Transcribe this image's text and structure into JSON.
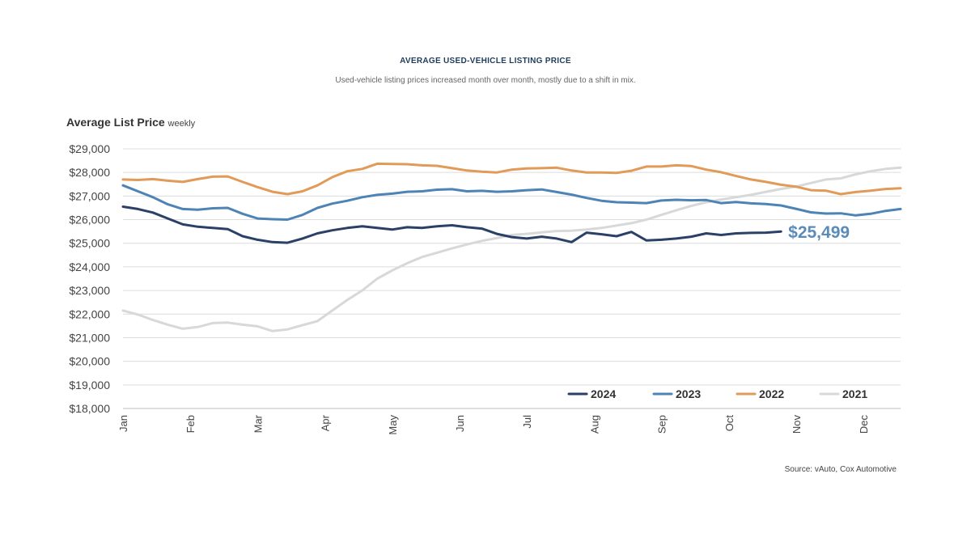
{
  "chart_data": {
    "type": "line",
    "title": "AVERAGE USED-VEHICLE LISTING PRICE",
    "subtitle": "Used-vehicle listing prices increased month over month, mostly due to a shift in mix.",
    "ylabel": "Average List Price",
    "ylabel_suffix": "weekly",
    "source": "Source: vAuto, Cox Automotive",
    "ylim": [
      18000,
      29000
    ],
    "yticks": [
      18000,
      19000,
      20000,
      21000,
      22000,
      23000,
      24000,
      25000,
      26000,
      27000,
      28000,
      29000
    ],
    "ytick_labels": [
      "$18,000",
      "$19,000",
      "$20,000",
      "$21,000",
      "$22,000",
      "$23,000",
      "$24,000",
      "$25,000",
      "$26,000",
      "$27,000",
      "$28,000",
      "$29,000"
    ],
    "months": [
      "Jan",
      "Feb",
      "Mar",
      "Apr",
      "May",
      "Jun",
      "Jul",
      "Aug",
      "Sep",
      "Oct",
      "Nov",
      "Dec"
    ],
    "x_unit": "week of year (0-52)",
    "xlim": [
      0,
      52
    ],
    "annotation": {
      "text": "$25,499",
      "series": "2024",
      "color": "#5b8bb8"
    },
    "grid": true,
    "legend_position": "bottom-right",
    "series": [
      {
        "name": "2024",
        "color": "#2b4067",
        "x": [
          0,
          1,
          2,
          3,
          4,
          5,
          6,
          7,
          8,
          9,
          10,
          11,
          12,
          13,
          14,
          15,
          16,
          17,
          18,
          19,
          20,
          21,
          22,
          23,
          24,
          25,
          26,
          27,
          28,
          29,
          30,
          31,
          32,
          33,
          34,
          35,
          36,
          37,
          38,
          39,
          40,
          41,
          42,
          43,
          44
        ],
        "values": [
          26550,
          26450,
          26300,
          26050,
          25800,
          25700,
          25650,
          25600,
          25300,
          25150,
          25050,
          25020,
          25200,
          25420,
          25550,
          25650,
          25720,
          25650,
          25580,
          25680,
          25650,
          25720,
          25760,
          25680,
          25620,
          25400,
          25260,
          25200,
          25280,
          25200,
          25050,
          25450,
          25380,
          25300,
          25480,
          25120,
          25150,
          25200,
          25280,
          25420,
          25350,
          25420,
          25440,
          25450,
          25499
        ]
      },
      {
        "name": "2023",
        "color": "#4e83b6",
        "x": [
          0,
          1,
          2,
          3,
          4,
          5,
          6,
          7,
          8,
          9,
          10,
          11,
          12,
          13,
          14,
          15,
          16,
          17,
          18,
          19,
          20,
          21,
          22,
          23,
          24,
          25,
          26,
          27,
          28,
          29,
          30,
          31,
          32,
          33,
          34,
          35,
          36,
          37,
          38,
          39,
          40,
          41,
          42,
          43,
          44,
          45,
          46,
          47,
          48,
          49,
          50,
          51,
          52
        ],
        "values": [
          27450,
          27200,
          26950,
          26650,
          26450,
          26420,
          26480,
          26500,
          26250,
          26050,
          26020,
          26000,
          26200,
          26500,
          26680,
          26800,
          26950,
          27050,
          27100,
          27180,
          27200,
          27270,
          27290,
          27200,
          27220,
          27180,
          27200,
          27250,
          27280,
          27170,
          27060,
          26920,
          26800,
          26740,
          26720,
          26700,
          26810,
          26840,
          26820,
          26830,
          26700,
          26750,
          26690,
          26660,
          26600,
          26460,
          26310,
          26260,
          26270,
          26180,
          26250,
          26370,
          26450
        ]
      },
      {
        "name": "2022",
        "color": "#e19a57",
        "x": [
          0,
          1,
          2,
          3,
          4,
          5,
          6,
          7,
          8,
          9,
          10,
          11,
          12,
          13,
          14,
          15,
          16,
          17,
          18,
          19,
          20,
          21,
          22,
          23,
          24,
          25,
          26,
          27,
          28,
          29,
          30,
          31,
          32,
          33,
          34,
          35,
          36,
          37,
          38,
          39,
          40,
          41,
          42,
          43,
          44,
          45,
          46,
          47,
          48,
          49,
          50,
          51,
          52
        ],
        "values": [
          27700,
          27680,
          27720,
          27650,
          27600,
          27720,
          27820,
          27830,
          27600,
          27380,
          27180,
          27080,
          27200,
          27450,
          27800,
          28050,
          28150,
          28370,
          28360,
          28350,
          28300,
          28280,
          28180,
          28080,
          28030,
          28000,
          28120,
          28170,
          28180,
          28200,
          28080,
          28000,
          28000,
          27980,
          28070,
          28250,
          28250,
          28300,
          28270,
          28120,
          28010,
          27850,
          27700,
          27600,
          27480,
          27400,
          27250,
          27230,
          27080,
          27170,
          27230,
          27300,
          27330
        ]
      },
      {
        "name": "2021",
        "color": "#d8d8d8",
        "x": [
          0,
          1,
          2,
          3,
          4,
          5,
          6,
          7,
          8,
          9,
          10,
          11,
          12,
          13,
          14,
          15,
          16,
          17,
          18,
          19,
          20,
          21,
          22,
          23,
          24,
          25,
          26,
          27,
          28,
          29,
          30,
          31,
          32,
          33,
          34,
          35,
          36,
          37,
          38,
          39,
          40,
          41,
          42,
          43,
          44,
          45,
          46,
          47,
          48,
          49,
          50,
          51,
          52
        ],
        "values": [
          22150,
          21980,
          21750,
          21550,
          21380,
          21450,
          21620,
          21640,
          21550,
          21480,
          21280,
          21350,
          21530,
          21700,
          22150,
          22600,
          23000,
          23500,
          23850,
          24150,
          24420,
          24600,
          24780,
          24950,
          25100,
          25220,
          25350,
          25400,
          25460,
          25520,
          25530,
          25580,
          25650,
          25750,
          25850,
          26000,
          26200,
          26400,
          26580,
          26740,
          26850,
          26950,
          27050,
          27180,
          27300,
          27400,
          27550,
          27700,
          27750,
          27920,
          28050,
          28150,
          28200
        ]
      }
    ]
  }
}
